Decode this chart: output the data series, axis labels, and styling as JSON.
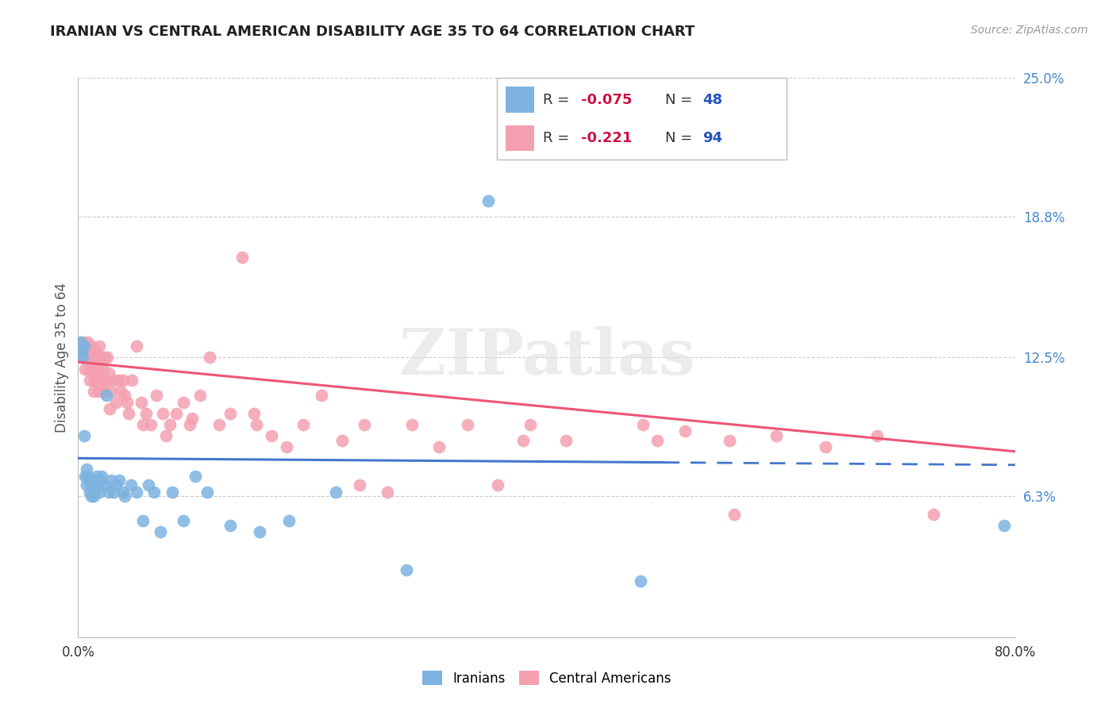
{
  "title": "IRANIAN VS CENTRAL AMERICAN DISABILITY AGE 35 TO 64 CORRELATION CHART",
  "source": "Source: ZipAtlas.com",
  "ylabel": "Disability Age 35 to 64",
  "xlim": [
    0.0,
    0.8
  ],
  "ylim": [
    0.0,
    0.25
  ],
  "yticks": [
    0.0,
    0.063,
    0.125,
    0.188,
    0.25
  ],
  "ytick_labels": [
    "",
    "6.3%",
    "12.5%",
    "18.8%",
    "25.0%"
  ],
  "xticks": [
    0.0,
    0.2,
    0.4,
    0.6,
    0.8
  ],
  "xtick_labels": [
    "0.0%",
    "",
    "",
    "",
    "80.0%"
  ],
  "legend_iranian_R": "-0.075",
  "legend_iranian_N": "48",
  "legend_central_R": "-0.221",
  "legend_central_N": "94",
  "iranian_color": "#7EB3E0",
  "central_color": "#F4A0B0",
  "trendline_iranian_color": "#4477CC",
  "trendline_central_color": "#EE5577",
  "background_color": "#ffffff",
  "iranians_x": [
    0.002,
    0.003,
    0.004,
    0.005,
    0.005,
    0.006,
    0.007,
    0.007,
    0.008,
    0.009,
    0.01,
    0.011,
    0.012,
    0.013,
    0.014,
    0.015,
    0.016,
    0.017,
    0.018,
    0.019,
    0.02,
    0.022,
    0.024,
    0.026,
    0.028,
    0.03,
    0.032,
    0.035,
    0.038,
    0.04,
    0.045,
    0.05,
    0.055,
    0.06,
    0.065,
    0.07,
    0.08,
    0.09,
    0.1,
    0.11,
    0.13,
    0.155,
    0.18,
    0.22,
    0.28,
    0.35,
    0.48,
    0.79
  ],
  "iranians_y": [
    0.132,
    0.128,
    0.125,
    0.09,
    0.13,
    0.072,
    0.068,
    0.075,
    0.072,
    0.07,
    0.065,
    0.063,
    0.068,
    0.063,
    0.065,
    0.07,
    0.072,
    0.068,
    0.065,
    0.07,
    0.072,
    0.068,
    0.108,
    0.065,
    0.07,
    0.065,
    0.068,
    0.07,
    0.065,
    0.063,
    0.068,
    0.065,
    0.052,
    0.068,
    0.065,
    0.047,
    0.065,
    0.052,
    0.072,
    0.065,
    0.05,
    0.047,
    0.052,
    0.065,
    0.03,
    0.195,
    0.025,
    0.05
  ],
  "central_x": [
    0.002,
    0.003,
    0.004,
    0.005,
    0.005,
    0.006,
    0.007,
    0.007,
    0.008,
    0.008,
    0.009,
    0.01,
    0.01,
    0.011,
    0.011,
    0.012,
    0.012,
    0.013,
    0.013,
    0.014,
    0.014,
    0.015,
    0.015,
    0.016,
    0.016,
    0.017,
    0.017,
    0.018,
    0.018,
    0.019,
    0.019,
    0.02,
    0.021,
    0.022,
    0.023,
    0.024,
    0.025,
    0.026,
    0.027,
    0.028,
    0.03,
    0.032,
    0.034,
    0.036,
    0.038,
    0.04,
    0.043,
    0.046,
    0.05,
    0.054,
    0.058,
    0.062,
    0.067,
    0.072,
    0.078,
    0.084,
    0.09,
    0.097,
    0.104,
    0.112,
    0.12,
    0.13,
    0.14,
    0.152,
    0.165,
    0.178,
    0.192,
    0.208,
    0.225,
    0.244,
    0.264,
    0.285,
    0.308,
    0.332,
    0.358,
    0.386,
    0.416,
    0.448,
    0.482,
    0.518,
    0.556,
    0.596,
    0.638,
    0.682,
    0.494,
    0.15,
    0.24,
    0.38,
    0.56,
    0.73,
    0.042,
    0.055,
    0.075,
    0.095
  ],
  "central_y": [
    0.13,
    0.125,
    0.132,
    0.125,
    0.13,
    0.12,
    0.13,
    0.127,
    0.125,
    0.132,
    0.12,
    0.128,
    0.115,
    0.13,
    0.122,
    0.125,
    0.118,
    0.11,
    0.125,
    0.115,
    0.12,
    0.128,
    0.115,
    0.12,
    0.125,
    0.118,
    0.11,
    0.13,
    0.112,
    0.125,
    0.118,
    0.115,
    0.12,
    0.125,
    0.11,
    0.115,
    0.125,
    0.118,
    0.102,
    0.11,
    0.115,
    0.105,
    0.115,
    0.11,
    0.115,
    0.108,
    0.1,
    0.115,
    0.13,
    0.105,
    0.1,
    0.095,
    0.108,
    0.1,
    0.095,
    0.1,
    0.105,
    0.098,
    0.108,
    0.125,
    0.095,
    0.1,
    0.17,
    0.095,
    0.09,
    0.085,
    0.095,
    0.108,
    0.088,
    0.095,
    0.065,
    0.095,
    0.085,
    0.095,
    0.068,
    0.095,
    0.088,
    0.225,
    0.095,
    0.092,
    0.088,
    0.09,
    0.085,
    0.09,
    0.088,
    0.1,
    0.068,
    0.088,
    0.055,
    0.055,
    0.105,
    0.095,
    0.09,
    0.095
  ],
  "iranian_trendline_solid_end": 0.5,
  "watermark_text": "ZIPatlas"
}
